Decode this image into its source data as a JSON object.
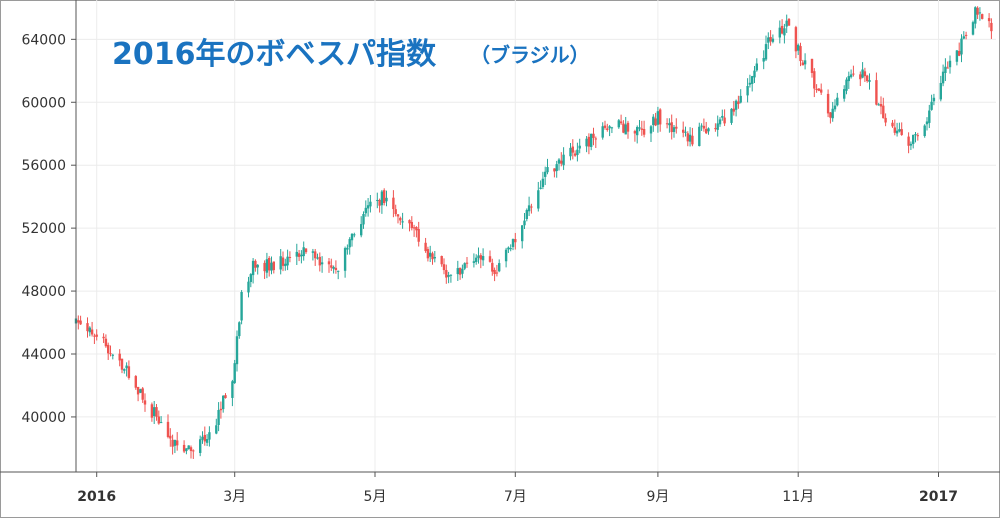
{
  "chart_data": {
    "type": "candlestick",
    "title": "2016年のボベスパ指数",
    "subtitle": "（ブラジル）",
    "y_ticks": [
      "64000",
      "60000",
      "56000",
      "52000",
      "48000",
      "44000",
      "40000"
    ],
    "y_range": [
      36500,
      66500
    ],
    "x_ticks": [
      {
        "label": "2016",
        "date": "2016-01-01",
        "bold": true
      },
      {
        "label": "3月",
        "date": "2016-03-01",
        "bold": false
      },
      {
        "label": "5月",
        "date": "2016-05-01",
        "bold": false
      },
      {
        "label": "7月",
        "date": "2016-07-01",
        "bold": false
      },
      {
        "label": "9月",
        "date": "2016-09-01",
        "bold": false
      },
      {
        "label": "11月",
        "date": "2016-11-01",
        "bold": false
      },
      {
        "label": "2017",
        "date": "2017-01-01",
        "bold": true
      }
    ],
    "x_range": [
      "2015-12-23",
      "2017-01-26"
    ],
    "grid": true,
    "colors": {
      "up": "#26a69a",
      "down": "#ef5350",
      "grid": "#ececec",
      "axis": "#555555"
    },
    "closes": [
      [
        "2015-12-23",
        46000
      ],
      [
        "2015-12-30",
        45200
      ],
      [
        "2016-01-05",
        44600
      ],
      [
        "2016-01-11",
        43600
      ],
      [
        "2016-01-18",
        42000
      ],
      [
        "2016-01-25",
        40400
      ],
      [
        "2016-02-01",
        38800
      ],
      [
        "2016-02-08",
        37800
      ],
      [
        "2016-02-15",
        38200
      ],
      [
        "2016-02-22",
        39800
      ],
      [
        "2016-03-01",
        43000
      ],
      [
        "2016-03-04",
        48200
      ],
      [
        "2016-03-10",
        49800
      ],
      [
        "2016-03-17",
        49500
      ],
      [
        "2016-03-24",
        50200
      ],
      [
        "2016-03-31",
        50600
      ],
      [
        "2016-04-07",
        49800
      ],
      [
        "2016-04-14",
        49000
      ],
      [
        "2016-04-21",
        51300
      ],
      [
        "2016-04-28",
        53500
      ],
      [
        "2016-05-05",
        54000
      ],
      [
        "2016-05-12",
        52800
      ],
      [
        "2016-05-19",
        51500
      ],
      [
        "2016-05-26",
        50000
      ],
      [
        "2016-06-02",
        48800
      ],
      [
        "2016-06-09",
        49600
      ],
      [
        "2016-06-16",
        50400
      ],
      [
        "2016-06-23",
        49200
      ],
      [
        "2016-06-30",
        51000
      ],
      [
        "2016-07-07",
        53000
      ],
      [
        "2016-07-14",
        55400
      ],
      [
        "2016-07-21",
        56500
      ],
      [
        "2016-07-28",
        57000
      ],
      [
        "2016-08-04",
        57800
      ],
      [
        "2016-08-11",
        58800
      ],
      [
        "2016-08-18",
        58200
      ],
      [
        "2016-08-25",
        58000
      ],
      [
        "2016-09-01",
        59000
      ],
      [
        "2016-09-08",
        58200
      ],
      [
        "2016-09-15",
        57500
      ],
      [
        "2016-09-22",
        58400
      ],
      [
        "2016-09-29",
        58800
      ],
      [
        "2016-10-06",
        59800
      ],
      [
        "2016-10-13",
        61800
      ],
      [
        "2016-10-20",
        64000
      ],
      [
        "2016-10-27",
        64800
      ],
      [
        "2016-11-01",
        63200
      ],
      [
        "2016-11-08",
        61200
      ],
      [
        "2016-11-15",
        59400
      ],
      [
        "2016-11-22",
        61200
      ],
      [
        "2016-11-29",
        62000
      ],
      [
        "2016-12-06",
        59600
      ],
      [
        "2016-12-13",
        58200
      ],
      [
        "2016-12-20",
        57400
      ],
      [
        "2016-12-27",
        58800
      ],
      [
        "2017-01-03",
        61600
      ],
      [
        "2017-01-10",
        63400
      ],
      [
        "2017-01-17",
        65800
      ],
      [
        "2017-01-24",
        64700
      ]
    ]
  }
}
